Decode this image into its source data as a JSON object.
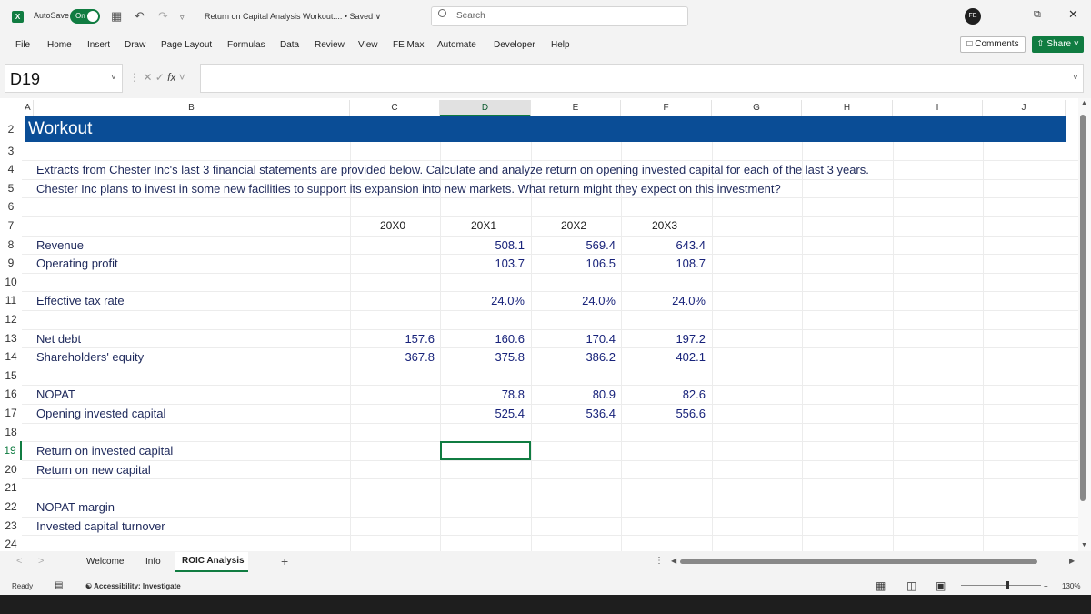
{
  "titlebar": {
    "autosave_label": "AutoSave",
    "autosave_state": "On",
    "doc_title": "Return on Capital Analysis Workout....  • Saved ∨",
    "search_placeholder": "Search"
  },
  "menu": [
    "File",
    "Home",
    "Insert",
    "Draw",
    "Page Layout",
    "Formulas",
    "Data",
    "Review",
    "View",
    "FE Max",
    "Automate",
    "Developer",
    "Help"
  ],
  "comments_label": "Comments",
  "share_label": "Share",
  "formula_bar": {
    "cell_ref": "D19",
    "fx": "fx",
    "formula": ""
  },
  "columns": [
    "A",
    "B",
    "C",
    "D",
    "E",
    "F",
    "G",
    "H",
    "I",
    "J"
  ],
  "selected_column": "D",
  "rows": [
    "2",
    "3",
    "4",
    "5",
    "6",
    "7",
    "8",
    "9",
    "10",
    "11",
    "12",
    "13",
    "14",
    "15",
    "16",
    "17",
    "18",
    "19",
    "20",
    "21",
    "22",
    "23",
    "24"
  ],
  "selected_row": "19",
  "sheet": {
    "banner": "Workout",
    "line4": "Extracts from Chester Inc's last 3 financial statements are provided below. Calculate and analyze return on opening invested capital for each of the last 3 years.",
    "line5": "Chester Inc plans to invest in some new facilities to support its expansion into new markets. What return might they expect on this investment?",
    "years": [
      "20X0",
      "20X1",
      "20X2",
      "20X3"
    ],
    "labels": {
      "revenue": "Revenue",
      "op_profit": "Operating profit",
      "tax_rate": "Effective tax rate",
      "net_debt": "Net debt",
      "equity": "Shareholders' equity",
      "nopat": "NOPAT",
      "opening_ic": "Opening invested capital",
      "roic": "Return on invested capital",
      "ronc": "Return on new capital",
      "nopat_margin": "NOPAT margin",
      "ic_turnover": "Invested capital turnover"
    },
    "values": {
      "revenue": [
        "",
        "508.1",
        "569.4",
        "643.4"
      ],
      "op_profit": [
        "",
        "103.7",
        "106.5",
        "108.7"
      ],
      "tax_rate": [
        "",
        "24.0%",
        "24.0%",
        "24.0%"
      ],
      "net_debt": [
        "157.6",
        "160.6",
        "170.4",
        "197.2"
      ],
      "equity": [
        "367.8",
        "375.8",
        "386.2",
        "402.1"
      ],
      "nopat": [
        "",
        "78.8",
        "80.9",
        "82.6"
      ],
      "opening_ic": [
        "",
        "525.4",
        "536.4",
        "556.6"
      ]
    }
  },
  "tabs": [
    "Welcome",
    "Info",
    "ROIC Analysis"
  ],
  "active_tab": "ROIC Analysis",
  "status": {
    "ready": "Ready",
    "accessibility": "Accessibility: Investigate",
    "zoom": "130%"
  }
}
